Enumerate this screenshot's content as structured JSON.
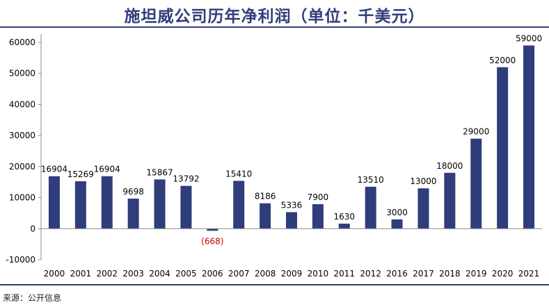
{
  "title": "施坦威公司历年净利润（单位：千美元）",
  "source": "来源：公开信息",
  "colors": {
    "bar": "#2f3d7a",
    "negative_label": "#c00000",
    "title": "#2f3d7a",
    "axis_text": "#000000"
  },
  "chart_data": {
    "type": "bar",
    "title": "施坦威公司历年净利润（单位：千美元）",
    "xlabel": "",
    "ylabel": "",
    "ylim": [
      -10000,
      60000
    ],
    "yticks": [
      -10000,
      0,
      10000,
      20000,
      30000,
      40000,
      50000,
      60000
    ],
    "grid": false,
    "legend": "none",
    "categories": [
      "2000",
      "2001",
      "2002",
      "2003",
      "2004",
      "2005",
      "2006",
      "2007",
      "2008",
      "2009",
      "2010",
      "2011",
      "2012",
      "2016",
      "2017",
      "2018",
      "2019",
      "2020",
      "2021"
    ],
    "values": [
      16904,
      15269,
      16904,
      9698,
      15867,
      13792,
      -668,
      15410,
      8186,
      5336,
      7900,
      1630,
      13510,
      3000,
      13000,
      18000,
      29000,
      52000,
      59000
    ],
    "labels": [
      "16904",
      "15269",
      "16904",
      "9698",
      "15867",
      "13792",
      "(668)",
      "15410",
      "8186",
      "5336",
      "7900",
      "1630",
      "13510",
      "3000",
      "13000",
      "18000",
      "29000",
      "52000",
      "59000"
    ]
  }
}
